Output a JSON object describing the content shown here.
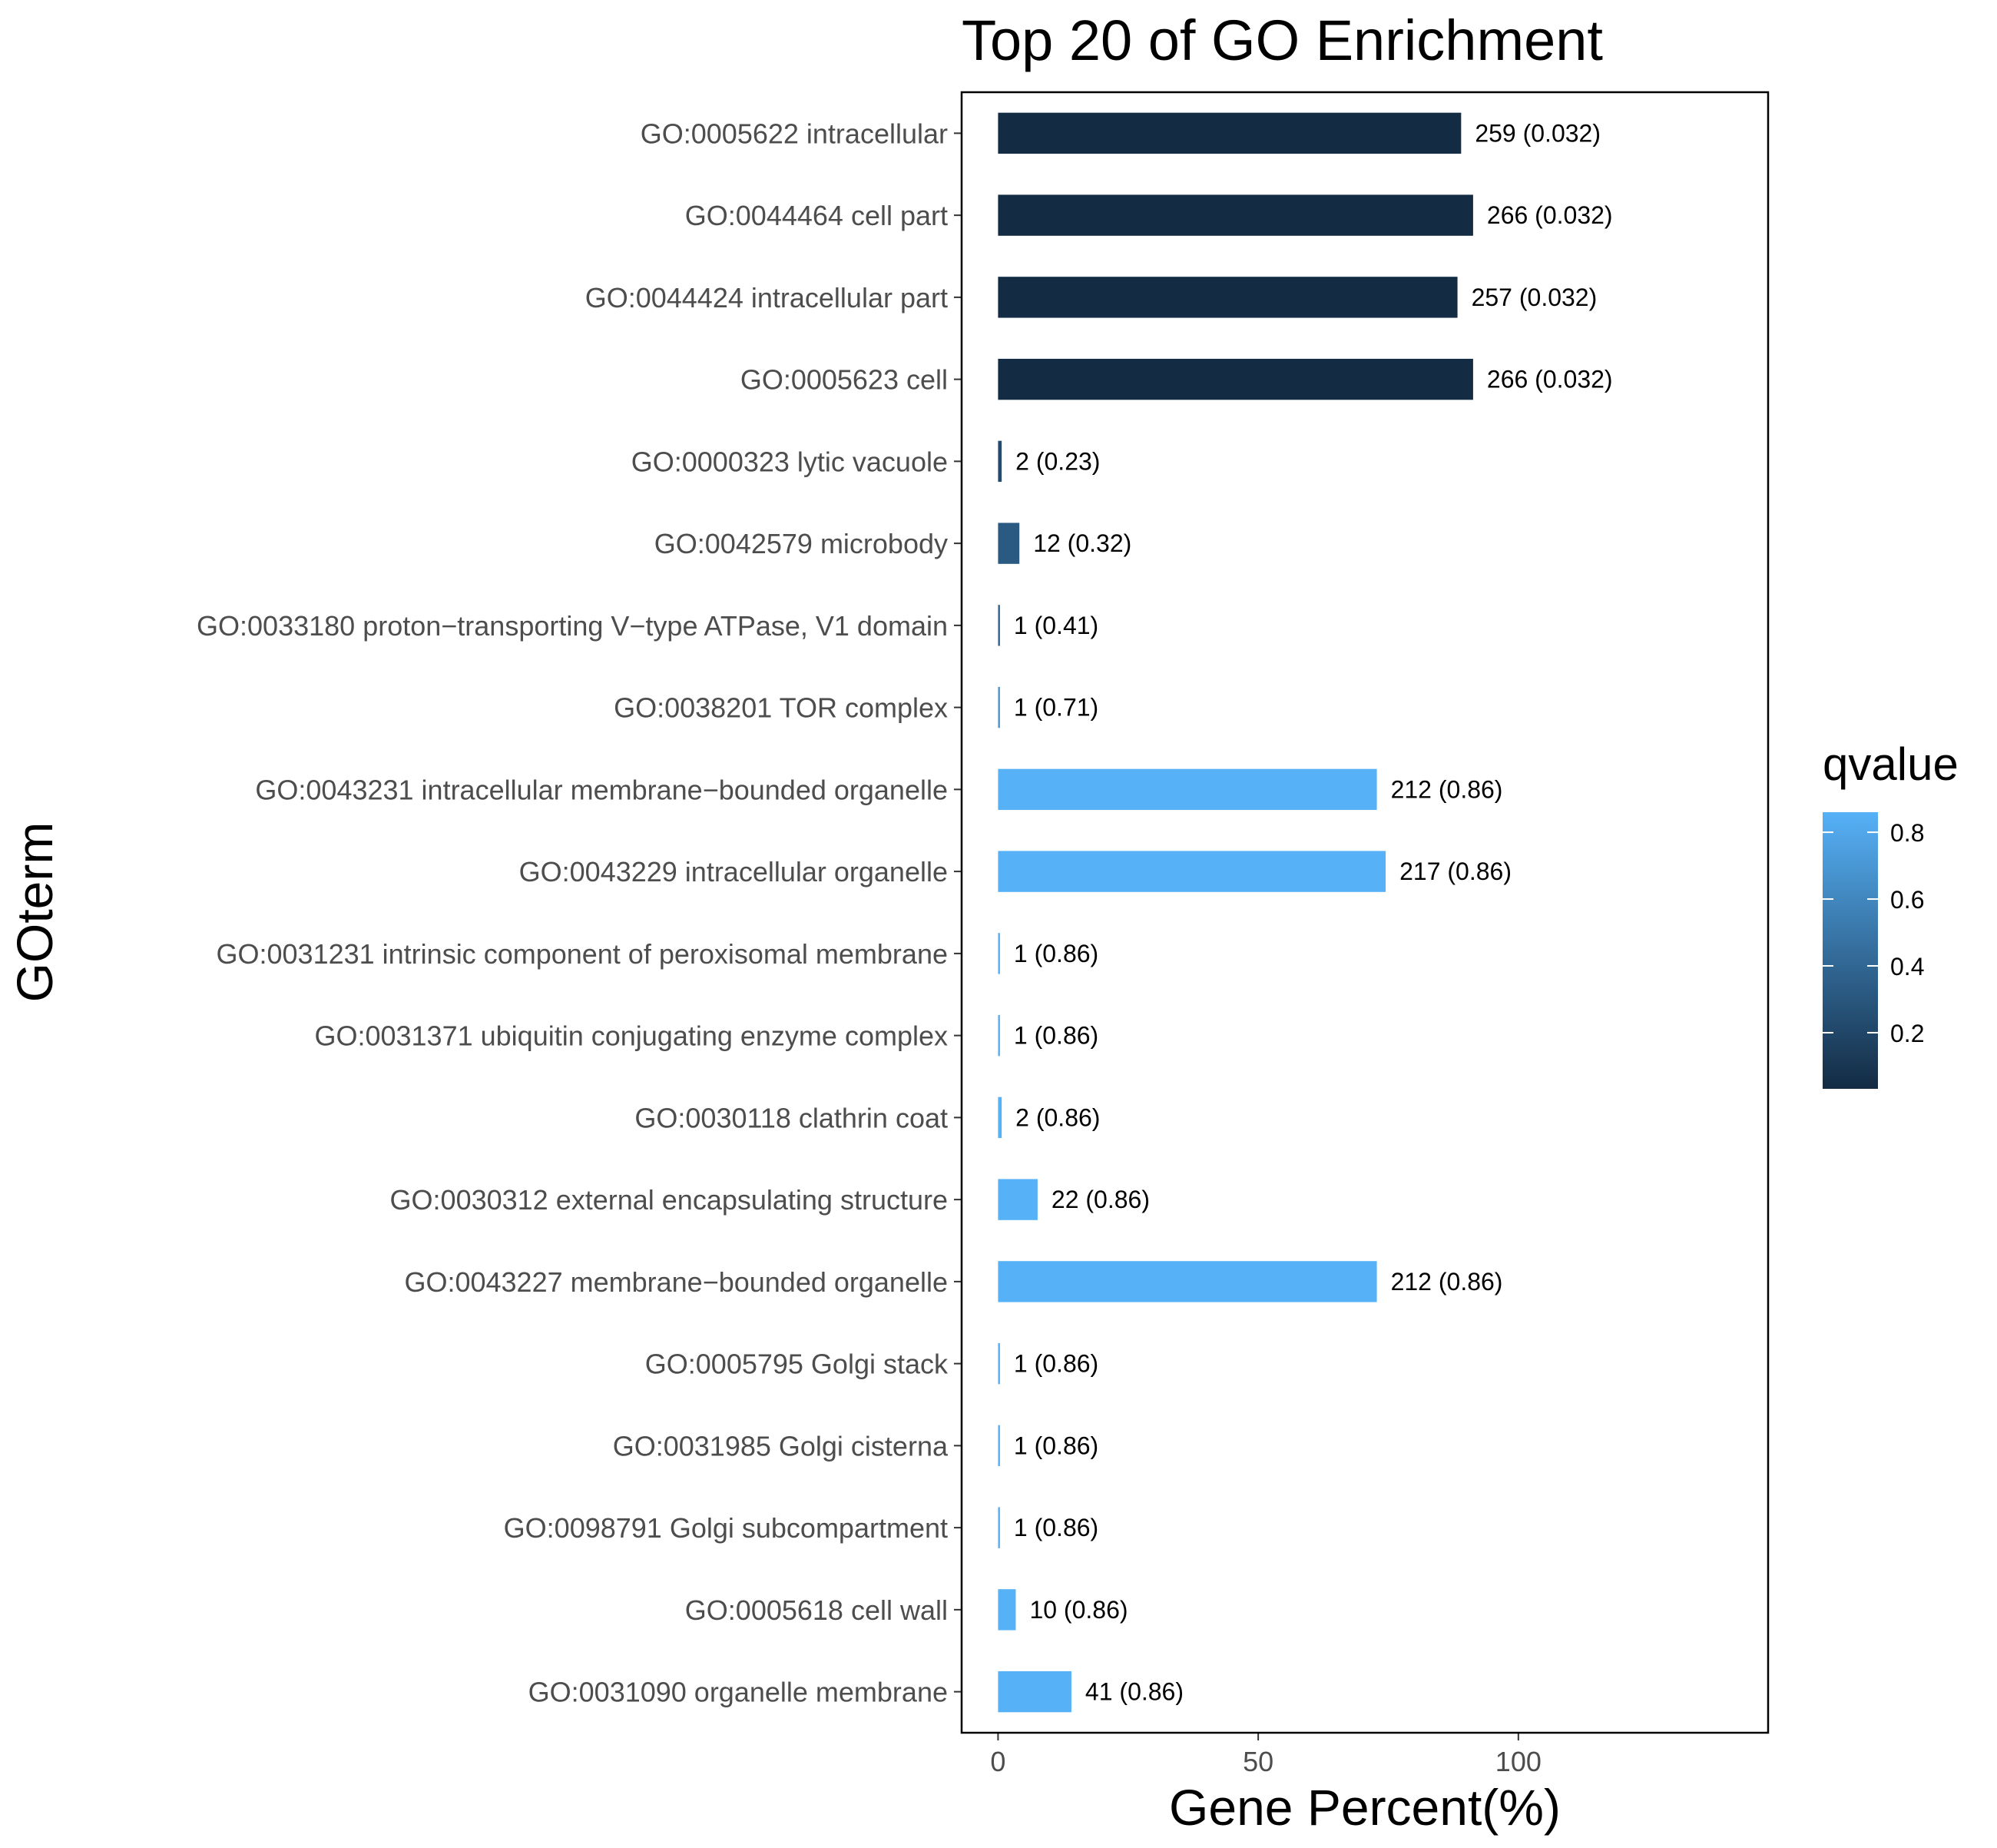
{
  "chart_data": {
    "type": "bar",
    "orientation": "horizontal",
    "title": "Top 20 of GO Enrichment",
    "xlabel": "Gene Percent(%)",
    "ylabel": "GOterm",
    "xlim": [
      -7,
      148
    ],
    "xticks": [
      0,
      50,
      100
    ],
    "grid": false,
    "legend": {
      "title": "qvalue",
      "placement": "right",
      "range": [
        0.032,
        0.86
      ],
      "ticks": [
        0.2,
        0.4,
        0.6,
        0.8
      ],
      "low_color": "#132B43",
      "high_color": "#56B1F7"
    },
    "categories": [
      "GO:0005622 intracellular",
      "GO:0044464 cell part",
      "GO:0044424 intracellular part",
      "GO:0005623 cell",
      "GO:0000323 lytic vacuole",
      "GO:0042579 microbody",
      "GO:0033180 proton−transporting V−type ATPase, V1 domain",
      "GO:0038201 TOR complex",
      "GO:0043231 intracellular membrane−bounded organelle",
      "GO:0043229 intracellular organelle",
      "GO:0031231 intrinsic component of peroxisomal membrane",
      "GO:0031371 ubiquitin conjugating enzyme complex",
      "GO:0030118 clathrin coat",
      "GO:0030312 external encapsulating structure",
      "GO:0043227 membrane−bounded organelle",
      "GO:0005795 Golgi stack",
      "GO:0031985 Golgi cisterna",
      "GO:0098791 Golgi subcompartment",
      "GO:0005618 cell wall",
      "GO:0031090 organelle membrane"
    ],
    "values": [
      89,
      91.3,
      88.3,
      91.3,
      0.7,
      4.1,
      0.35,
      0.35,
      72.8,
      74.5,
      0.35,
      0.35,
      0.7,
      7.6,
      72.8,
      0.35,
      0.35,
      0.35,
      3.4,
      14.1
    ],
    "qvalues": [
      0.032,
      0.032,
      0.032,
      0.032,
      0.23,
      0.32,
      0.41,
      0.71,
      0.86,
      0.86,
      0.86,
      0.86,
      0.86,
      0.86,
      0.86,
      0.86,
      0.86,
      0.86,
      0.86,
      0.86
    ],
    "labels": [
      "259 (0.032)",
      "266 (0.032)",
      "257 (0.032)",
      "266 (0.032)",
      "2 (0.23)",
      "12 (0.32)",
      "1 (0.41)",
      "1 (0.71)",
      "212 (0.86)",
      "217 (0.86)",
      "1 (0.86)",
      "1 (0.86)",
      "2 (0.86)",
      "22 (0.86)",
      "212 (0.86)",
      "1 (0.86)",
      "1 (0.86)",
      "1 (0.86)",
      "10 (0.86)",
      "41 (0.86)"
    ]
  }
}
